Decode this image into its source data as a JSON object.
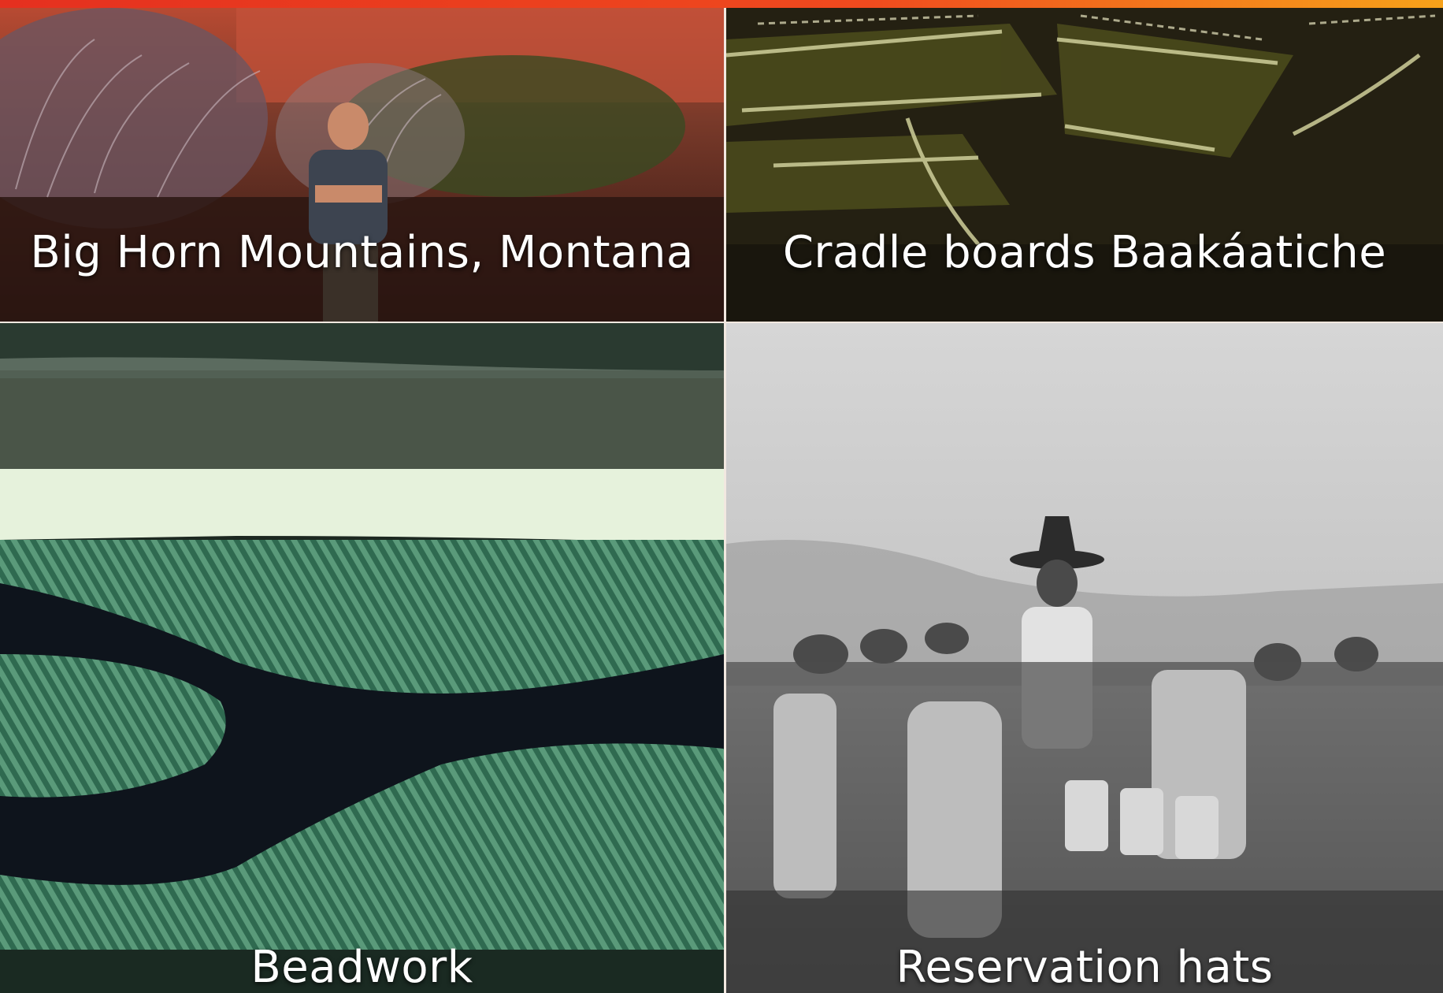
{
  "tiles": [
    {
      "caption": "Big Horn Mountains, Montana"
    },
    {
      "caption": "Cradle boards Baakáatiche"
    },
    {
      "caption": "Beadwork"
    },
    {
      "caption": "Reservation hats"
    }
  ],
  "colors": {
    "top_bar_start": "#e5301f",
    "top_bar_end": "#f7a21a",
    "caption_text": "#ffffff",
    "gutter": "#f2e8e0"
  }
}
